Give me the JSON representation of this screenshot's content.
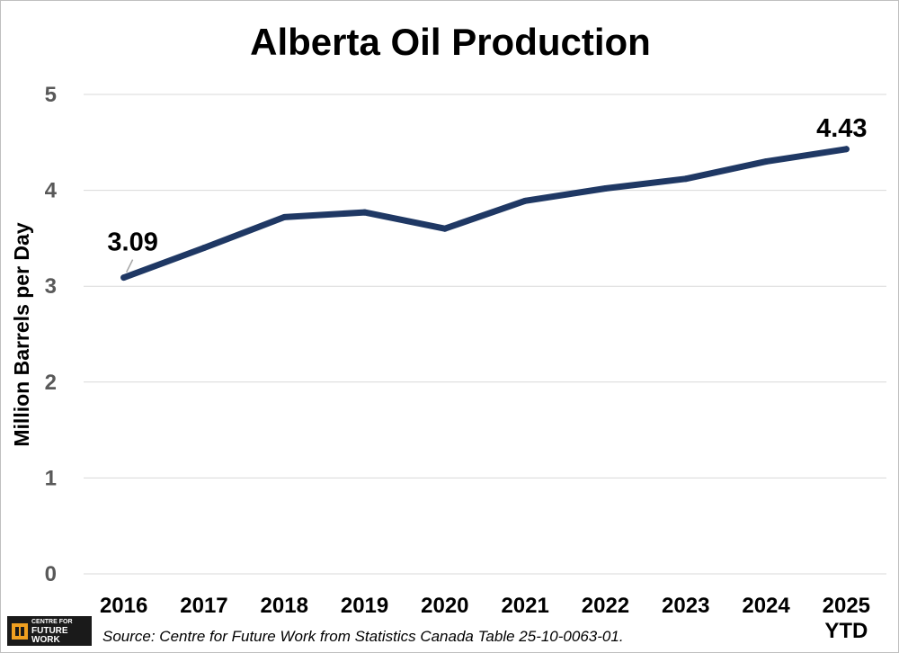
{
  "chart_data": {
    "type": "line",
    "title": "Alberta Oil Production",
    "xlabel": "",
    "ylabel": "Million Barrels per Day",
    "categories": [
      [
        "2016"
      ],
      [
        "2017"
      ],
      [
        "2018"
      ],
      [
        "2019"
      ],
      [
        "2020"
      ],
      [
        "2021"
      ],
      [
        "2022"
      ],
      [
        "2023"
      ],
      [
        "2024"
      ],
      [
        "2025",
        "YTD"
      ]
    ],
    "series": [
      {
        "values": [
          3.09,
          3.4,
          3.72,
          3.77,
          3.6,
          3.89,
          4.02,
          4.12,
          4.3,
          4.43
        ],
        "color": "#1f3864"
      }
    ],
    "data_labels": [
      {
        "index": 0,
        "text": "3.09"
      },
      {
        "index": 9,
        "text": "4.43"
      }
    ],
    "yticks": [
      "0",
      "1",
      "2",
      "3",
      "4",
      "5"
    ],
    "ylim": [
      0,
      5
    ],
    "grid": true,
    "legend": "none"
  },
  "logo": {
    "line1": "CENTRE FOR",
    "line2": "FUTURE WORK"
  },
  "source": "Source: Centre for Future Work from Statistics Canada Table 25-10-0063-01."
}
